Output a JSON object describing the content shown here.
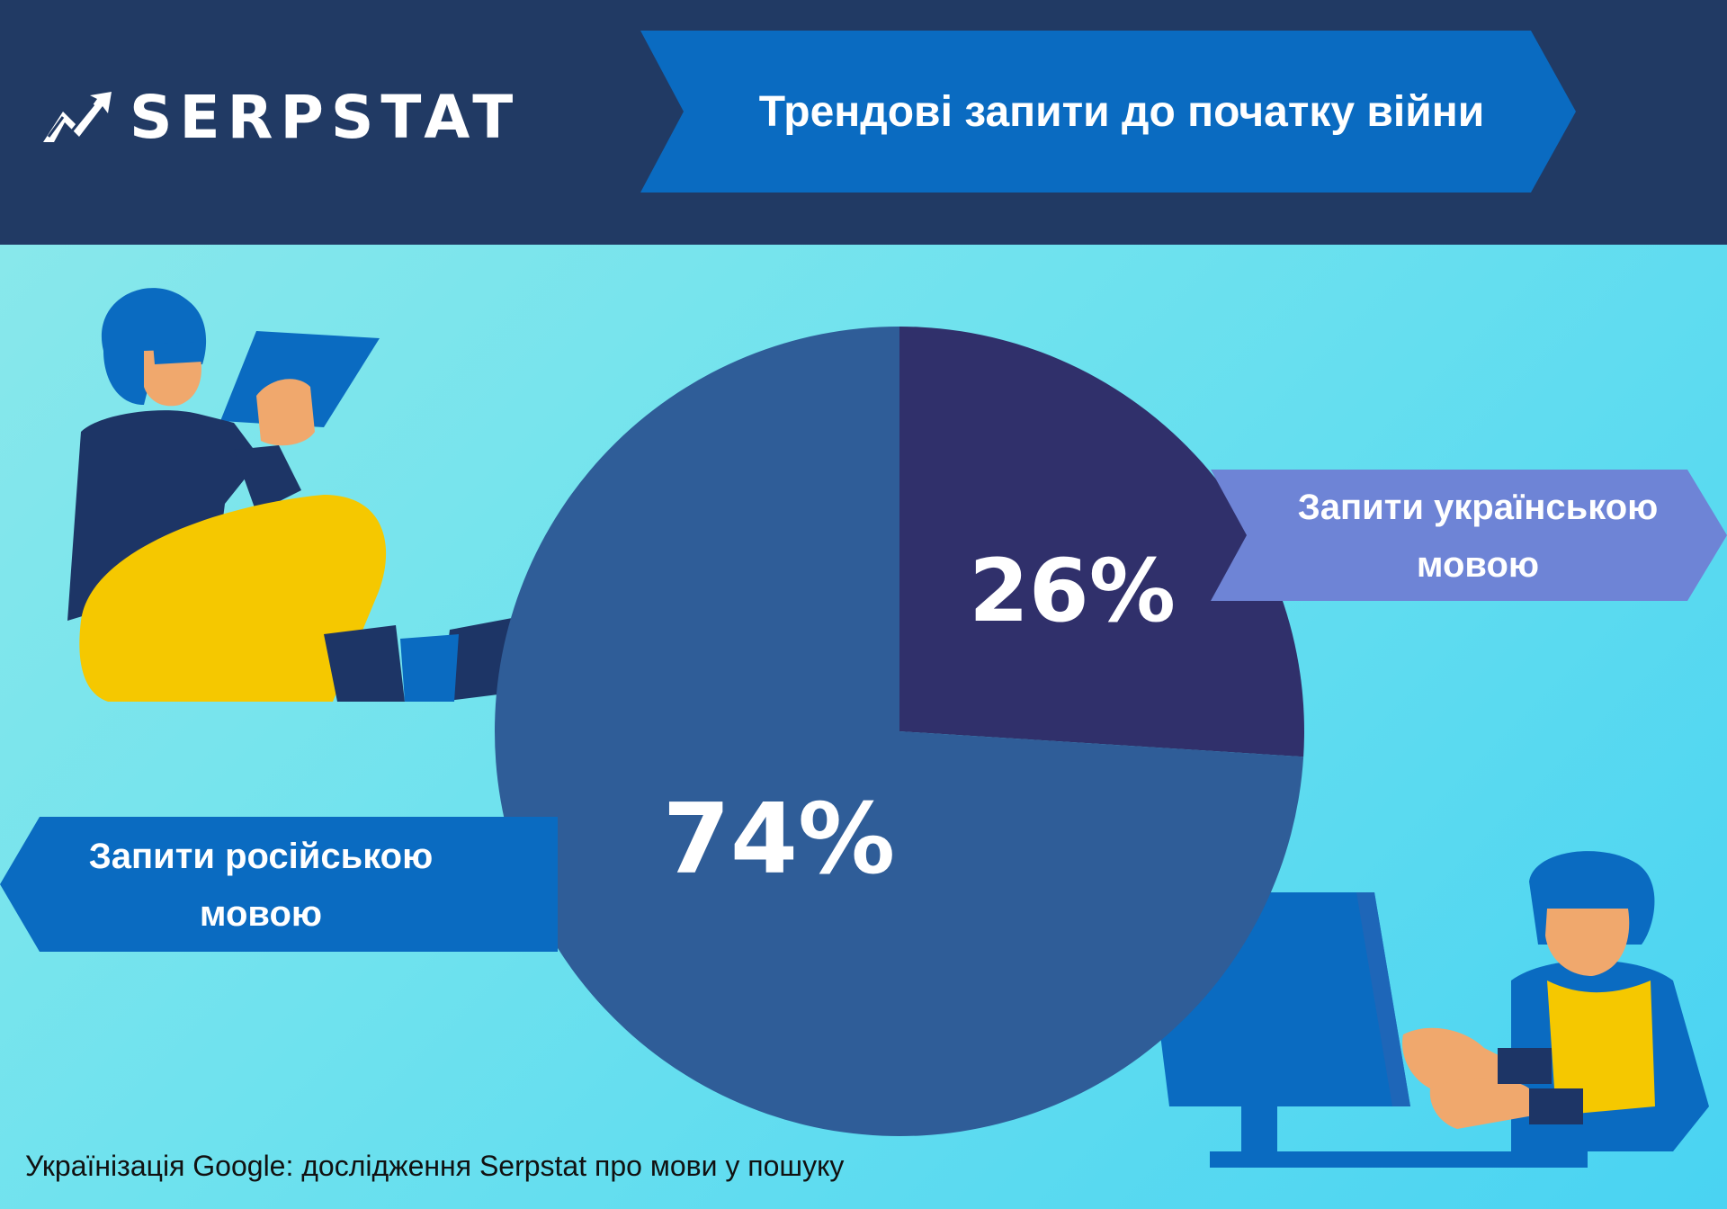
{
  "brand": {
    "logo_text": "SERPSTAT"
  },
  "header": {
    "title": "Трендові запити до початку війни"
  },
  "chart_data": {
    "type": "pie",
    "title": "Трендові запити до початку війни",
    "slices": [
      {
        "label": "Запити українською мовою",
        "value": 26,
        "display": "26%",
        "color": "#30306b"
      },
      {
        "label": "Запити російською мовою",
        "value": 74,
        "display": "74%",
        "color": "#2f5d98"
      }
    ],
    "start_angle_deg": 0,
    "direction": "clockwise"
  },
  "labels": {
    "ukrainian": {
      "line1": "Запити українською",
      "line2": "мовою",
      "color": "#6e84d6"
    },
    "russian": {
      "line1": "Запити російською",
      "line2": "мовою",
      "color": "#0a6bc1"
    }
  },
  "footer": {
    "caption": "Українізація Google: дослідження Serpstat про мови у пошуку"
  },
  "colors": {
    "header_bg": "#213a64",
    "title_banner": "#0a6bc1",
    "background": "#6fe2ee"
  }
}
